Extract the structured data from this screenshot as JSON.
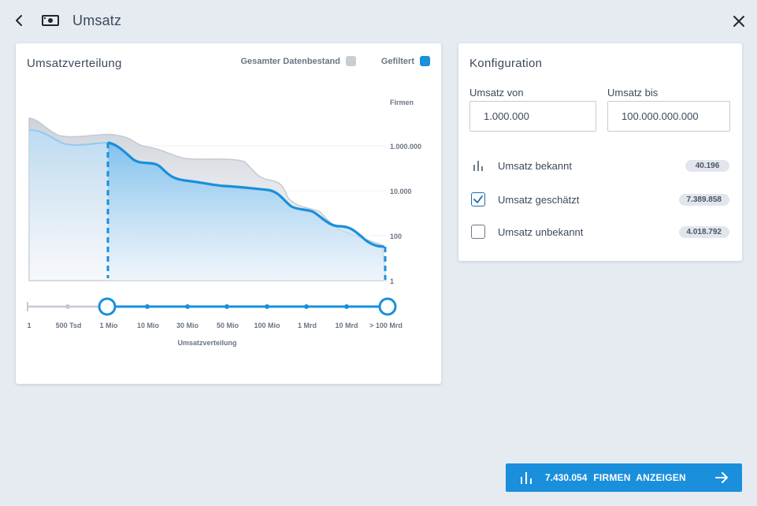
{
  "header": {
    "title": "Umsatz",
    "back_icon": "chevron-left-icon",
    "money_icon": "banknote-icon",
    "close_icon": "close-icon"
  },
  "chart_card": {
    "title": "Umsatzverteilung",
    "legend": [
      {
        "label": "Gesamter Datenbestand",
        "color": "#c9ced5"
      },
      {
        "label": "Gefiltert",
        "color": "#1a8fdc"
      }
    ]
  },
  "chart_data": {
    "type": "area",
    "title": "Umsatzverteilung",
    "xlabel": "Umsatzverteilung",
    "ylabel": "Firmen",
    "yscale": "log",
    "y_ticks": [
      "1.000.000",
      "10.000",
      "100",
      "1"
    ],
    "x_ticks": [
      "1",
      "500 Tsd",
      "1 Mio",
      "10 Mio",
      "30 Mio",
      "50 Mio",
      "100 Mio",
      "1 Mrd",
      "10 Mrd",
      "> 100 Mrd"
    ],
    "series": [
      {
        "name": "Gesamter Datenbestand",
        "color": "#c9ced5"
      },
      {
        "name": "Gefiltert",
        "color": "#1a8fdc"
      }
    ],
    "range": {
      "from": "1 Mio",
      "to": "> 100 Mrd"
    },
    "grid": true
  },
  "config": {
    "title": "Konfiguration",
    "from_label": "Umsatz von",
    "from_value": "1.000.000",
    "to_label": "Umsatz bis",
    "to_value": "100.000.000.000",
    "options": [
      {
        "label": "Umsatz bekannt",
        "count": "40.196",
        "icon": "bar-chart-icon",
        "checked": null
      },
      {
        "label": "Umsatz geschätzt",
        "count": "7.389.858",
        "icon": "checkbox-icon",
        "checked": true
      },
      {
        "label": "Umsatz unbekannt",
        "count": "4.018.792",
        "icon": "checkbox-icon",
        "checked": false
      }
    ]
  },
  "cta": {
    "count": "7.430.054",
    "label": "FIRMEN  ANZEIGEN",
    "color": "#1a8fdc"
  }
}
